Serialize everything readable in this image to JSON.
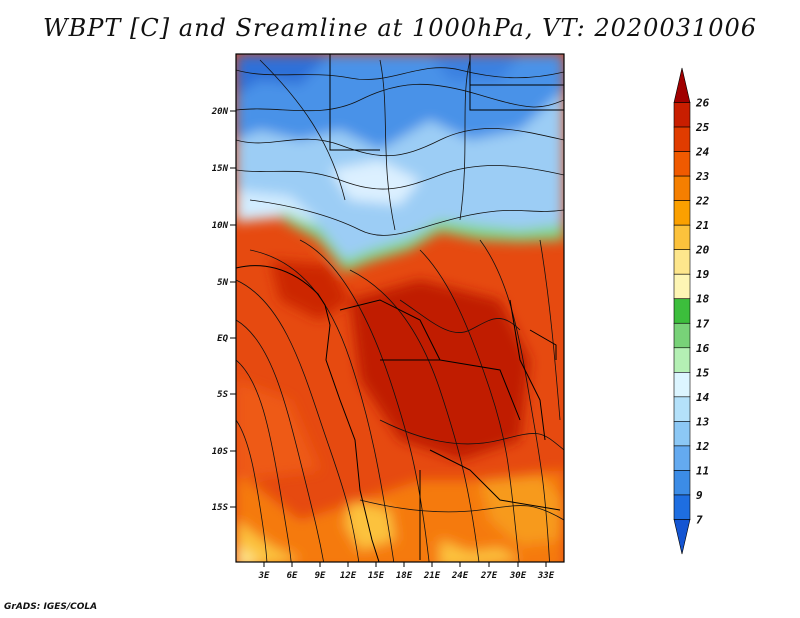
{
  "title": "WBPT [C] and Sreamline at 1000hPa, VT: 2020031006",
  "footer": "GrADS: IGES/COLA",
  "map": {
    "lat_labels": [
      "20N",
      "15N",
      "10N",
      "5N",
      "EQ",
      "5S",
      "10S",
      "15S"
    ],
    "lon_labels": [
      "3E",
      "6E",
      "9E",
      "12E",
      "15E",
      "18E",
      "21E",
      "24E",
      "27E",
      "30E",
      "33E"
    ]
  },
  "colorbar": {
    "labels": [
      "26",
      "25",
      "24",
      "23",
      "22",
      "21",
      "20",
      "19",
      "18",
      "17",
      "16",
      "15",
      "14",
      "13",
      "12",
      "11",
      "9",
      "7"
    ],
    "colors": [
      "#a00000",
      "#c81e00",
      "#e03c00",
      "#f05a00",
      "#f57f00",
      "#fba000",
      "#fcc23c",
      "#fde68c",
      "#fdf5b4",
      "#3cbe3c",
      "#78d278",
      "#b4f0b4",
      "#dcf5ff",
      "#b4e1fa",
      "#8cc8f5",
      "#64aaf0",
      "#3c8ce6",
      "#1e6ee1",
      "#1455d2"
    ]
  }
}
